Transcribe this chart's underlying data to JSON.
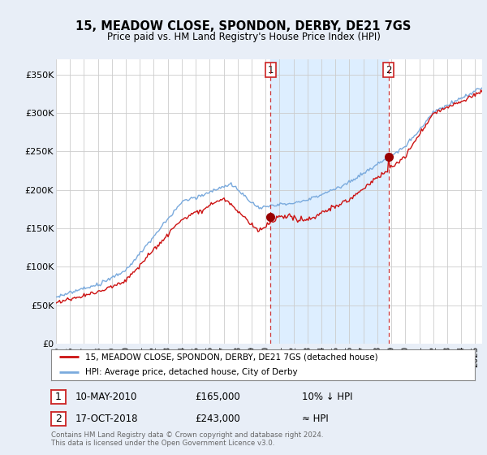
{
  "title": "15, MEADOW CLOSE, SPONDON, DERBY, DE21 7GS",
  "subtitle": "Price paid vs. HM Land Registry's House Price Index (HPI)",
  "ylabel_ticks": [
    "£0",
    "£50K",
    "£100K",
    "£150K",
    "£200K",
    "£250K",
    "£300K",
    "£350K"
  ],
  "ytick_values": [
    0,
    50000,
    100000,
    150000,
    200000,
    250000,
    300000,
    350000
  ],
  "ylim": [
    0,
    370000
  ],
  "xlim_start": 1995.0,
  "xlim_end": 2025.5,
  "bg_color": "#e8eef7",
  "plot_bg_color": "#ffffff",
  "shade_color": "#ddeeff",
  "legend_line1": "15, MEADOW CLOSE, SPONDON, DERBY, DE21 7GS (detached house)",
  "legend_line2": "HPI: Average price, detached house, City of Derby",
  "sale1_date": "10-MAY-2010",
  "sale1_price": "£165,000",
  "sale1_hpi": "10% ↓ HPI",
  "sale1_x": 2010.36,
  "sale1_y": 165000,
  "sale2_date": "17-OCT-2018",
  "sale2_price": "£243,000",
  "sale2_hpi": "≈ HPI",
  "sale2_x": 2018.79,
  "sale2_y": 243000,
  "footer": "Contains HM Land Registry data © Crown copyright and database right 2024.\nThis data is licensed under the Open Government Licence v3.0.",
  "hpi_color": "#7aaadd",
  "price_color": "#cc1111",
  "dashed_color": "#cc2222",
  "grid_color": "#cccccc"
}
